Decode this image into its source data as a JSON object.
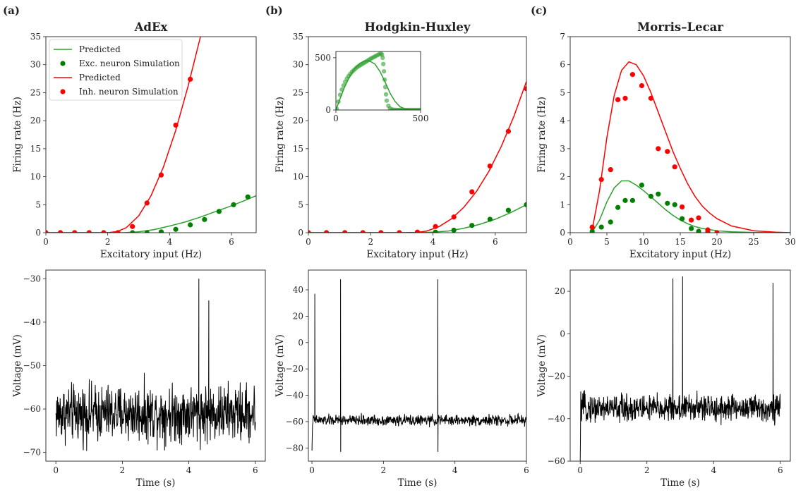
{
  "panel_labels": [
    "(a)",
    "(b)",
    "(c)"
  ],
  "chart_data": [
    {
      "id": "adex-fi",
      "type": "line",
      "title": "AdEx",
      "xlabel": "Excitatory input (Hz)",
      "ylabel": "Firing rate (Hz)",
      "xlim": [
        0,
        6.8
      ],
      "ylim": [
        0,
        35
      ],
      "xticks": [
        0,
        2,
        4,
        6
      ],
      "yticks": [
        0,
        5,
        10,
        15,
        20,
        25,
        30,
        35
      ],
      "legend": {
        "position": "top-left",
        "entries": [
          {
            "label": "Predicted",
            "kind": "line",
            "color": "#2ca02c"
          },
          {
            "label": "Exc. neuron Simulation",
            "kind": "marker",
            "color": "#008000"
          },
          {
            "label": "Predicted",
            "kind": "line",
            "color": "#ff0000"
          },
          {
            "label": "Inh. neuron Simulation",
            "kind": "marker",
            "color": "#ff0000"
          }
        ]
      },
      "series": [
        {
          "kind": "line",
          "color": "#2ca02c",
          "x": [
            0,
            1,
            2,
            2.5,
            3,
            3.5,
            4,
            4.5,
            5,
            5.5,
            6,
            6.5,
            6.8
          ],
          "y": [
            0,
            0,
            0,
            0,
            0.15,
            0.55,
            1.2,
            1.9,
            2.8,
            3.8,
            4.8,
            5.9,
            6.6
          ]
        },
        {
          "kind": "line",
          "color": "#ff0000",
          "x": [
            0,
            1,
            2,
            2.3,
            2.6,
            3,
            3.4,
            3.8,
            4.2,
            4.6,
            5,
            5.3
          ],
          "y": [
            0,
            0,
            0,
            0.2,
            0.9,
            3,
            6.6,
            11.7,
            18.3,
            26.2,
            35,
            42
          ]
        },
        {
          "kind": "scatter",
          "color": "#008000",
          "x": [
            0,
            0.47,
            0.93,
            1.4,
            1.87,
            2.33,
            2.8,
            3.27,
            3.73,
            4.2,
            4.67,
            5.13,
            5.6,
            6.07,
            6.53
          ],
          "y": [
            0,
            0,
            0,
            0,
            0,
            0,
            0,
            0,
            0.15,
            0.6,
            1.4,
            2.35,
            3.8,
            5,
            6.4
          ]
        },
        {
          "kind": "scatter",
          "color": "#ff0000",
          "x": [
            0,
            0.47,
            0.93,
            1.4,
            1.87,
            2.33,
            2.8,
            3.27,
            3.73,
            4.2,
            4.67
          ],
          "y": [
            0,
            0,
            0,
            0,
            0,
            0,
            1.1,
            5.3,
            10.3,
            19.2,
            27.4
          ]
        }
      ]
    },
    {
      "id": "hh-fi",
      "type": "line",
      "title": "Hodgkin-Huxley",
      "xlabel": "Excitatory input (Hz)",
      "ylabel": "Firing rate (Hz)",
      "xlim": [
        0,
        7
      ],
      "ylim": [
        0,
        35
      ],
      "xticks": [
        0,
        2,
        4,
        6
      ],
      "yticks": [
        0,
        5,
        10,
        15,
        20,
        25,
        30,
        35
      ],
      "series": [
        {
          "kind": "line",
          "color": "#2ca02c",
          "x": [
            0,
            3,
            3.5,
            4,
            4.5,
            5,
            5.5,
            6,
            6.5,
            7
          ],
          "y": [
            0,
            0,
            0,
            0.1,
            0.3,
            0.8,
            1.5,
            2.4,
            3.6,
            5
          ]
        },
        {
          "kind": "line",
          "color": "#ff0000",
          "x": [
            0,
            3,
            3.5,
            3.8,
            4.2,
            4.6,
            5,
            5.4,
            5.8,
            6.2,
            6.6,
            7
          ],
          "y": [
            0,
            0,
            0.05,
            0.3,
            1.1,
            2.5,
            4.6,
            7.4,
            11,
            15.5,
            20.8,
            27
          ]
        },
        {
          "kind": "scatter",
          "color": "#008000",
          "x": [
            0,
            0.58,
            1.17,
            1.75,
            2.33,
            2.92,
            3.5,
            4.08,
            4.67,
            5.25,
            5.83,
            6.42,
            7
          ],
          "y": [
            0,
            0,
            0,
            0,
            0,
            0,
            0,
            0.1,
            0.45,
            1.3,
            2.4,
            4,
            5
          ]
        },
        {
          "kind": "scatter",
          "color": "#ff0000",
          "x": [
            0,
            0.58,
            1.17,
            1.75,
            2.33,
            2.92,
            3.5,
            4.08,
            4.67,
            5.25,
            5.83,
            6.42,
            7
          ],
          "y": [
            0,
            0,
            0,
            0,
            0,
            0,
            0.1,
            1.1,
            2.8,
            7.3,
            11.9,
            18.1,
            25.7
          ]
        }
      ],
      "inset": {
        "xlim": [
          0,
          500
        ],
        "ylim": [
          0,
          560
        ],
        "xticks": [
          0,
          500
        ],
        "yticks": [
          0,
          500
        ],
        "series": [
          {
            "kind": "line",
            "color": "#2ca02c",
            "x": [
              0,
              25,
              50,
              80,
              110,
              140,
              170,
              200,
              230,
              260,
              290,
              320,
              350,
              380,
              410,
              440,
              500
            ],
            "y": [
              0,
              110,
              215,
              315,
              395,
              445,
              470,
              468,
              440,
              370,
              270,
              160,
              80,
              30,
              10,
              2,
              0
            ]
          },
          {
            "kind": "scatter",
            "color": "#2ca02c",
            "x": [
              5,
              15,
              25,
              35,
              45,
              55,
              65,
              75,
              85,
              95,
              105,
              115,
              125,
              135,
              145,
              155,
              165,
              175,
              185,
              195,
              205,
              215,
              225,
              235,
              245,
              255,
              265,
              272,
              276,
              280,
              284,
              288,
              292,
              296,
              300,
              310,
              320,
              330,
              340,
              350,
              360,
              370,
              380,
              390,
              400,
              410,
              420,
              430,
              440,
              450,
              460,
              470,
              480,
              490,
              500
            ],
            "y": [
              10,
              80,
              145,
              195,
              235,
              270,
              300,
              325,
              345,
              365,
              380,
              395,
              410,
              420,
              430,
              440,
              450,
              460,
              470,
              480,
              490,
              500,
              508,
              516,
              525,
              533,
              540,
              530,
              500,
              440,
              370,
              290,
              220,
              150,
              90,
              40,
              15,
              5,
              2,
              1,
              0,
              0,
              0,
              0,
              0,
              0,
              0,
              0,
              0,
              0,
              0,
              0,
              0,
              0,
              0
            ]
          }
        ]
      }
    },
    {
      "id": "ml-fi",
      "type": "line",
      "title": "Morris–Lecar",
      "xlabel": "Excitatory input (Hz)",
      "ylabel": "Firing rate (Hz)",
      "xlim": [
        0,
        30
      ],
      "ylim": [
        0,
        7
      ],
      "xticks": [
        0,
        5,
        10,
        15,
        20,
        25,
        30
      ],
      "yticks": [
        0,
        1,
        2,
        3,
        4,
        5,
        6,
        7
      ],
      "series": [
        {
          "kind": "line",
          "color": "#2ca02c",
          "x": [
            3,
            4,
            5,
            6,
            7,
            8,
            9,
            10,
            11,
            12,
            13,
            14,
            15,
            16,
            17,
            18,
            20,
            22,
            25,
            30
          ],
          "y": [
            0.02,
            0.45,
            1.1,
            1.6,
            1.85,
            1.85,
            1.7,
            1.5,
            1.28,
            1.05,
            0.82,
            0.62,
            0.45,
            0.32,
            0.22,
            0.15,
            0.07,
            0.03,
            0.01,
            0
          ]
        },
        {
          "kind": "line",
          "color": "#ff0000",
          "x": [
            3,
            4,
            5,
            6,
            7,
            8,
            9,
            10,
            11,
            12,
            13,
            14,
            15,
            16,
            17,
            18,
            19,
            20,
            22,
            25,
            28,
            30
          ],
          "y": [
            0.1,
            1.5,
            3.4,
            4.9,
            5.8,
            6.1,
            6,
            5.6,
            5,
            4.3,
            3.6,
            2.9,
            2.3,
            1.75,
            1.3,
            0.95,
            0.7,
            0.5,
            0.24,
            0.07,
            0.02,
            0
          ]
        },
        {
          "kind": "scatter",
          "color": "#008000",
          "x": [
            3,
            4.25,
            5.5,
            6.5,
            7.5,
            8.5,
            9.75,
            11,
            12,
            13.25,
            14.25,
            15.25,
            16.5,
            17.5,
            18.75,
            20
          ],
          "y": [
            0.05,
            0.2,
            0.38,
            0.9,
            1.15,
            1.15,
            1.7,
            1.3,
            1.38,
            1.05,
            1,
            0.5,
            0.15,
            0.05,
            0.02,
            0
          ]
        },
        {
          "kind": "scatter",
          "color": "#ff0000",
          "x": [
            3,
            4.25,
            5.5,
            6.5,
            7.5,
            8.5,
            9.75,
            11,
            12,
            13.25,
            14.25,
            15.25,
            16.5,
            17.5,
            18.75,
            20
          ],
          "y": [
            0.2,
            1.9,
            2.25,
            4.75,
            4.8,
            5.65,
            5.25,
            4.8,
            3,
            2.9,
            2.35,
            0.92,
            0.45,
            0.53,
            0.1,
            0
          ]
        }
      ]
    },
    {
      "id": "adex-trace",
      "type": "line",
      "xlabel": "Time (s)",
      "ylabel": "Voltage (mV)",
      "xlim": [
        -0.3,
        6.3
      ],
      "ylim": [
        -72,
        -28
      ],
      "xticks": [
        0,
        2,
        4,
        6
      ],
      "yticks": [
        -70,
        -60,
        -50,
        -40,
        -30
      ],
      "trace": {
        "t0": 0,
        "t1": 6,
        "base": -61,
        "noise": 4,
        "start": -61,
        "clip": [
          -70,
          -50
        ],
        "spikes": [
          {
            "t": 4.3,
            "peak": -30
          },
          {
            "t": 4.6,
            "peak": -35
          }
        ]
      }
    },
    {
      "id": "hh-trace",
      "type": "line",
      "xlabel": "Time (s)",
      "ylabel": "Voltage (mV)",
      "xlim": [
        -0.1,
        6
      ],
      "ylim": [
        -90,
        55
      ],
      "xticks": [
        0,
        2,
        4,
        6
      ],
      "yticks": [
        -80,
        -60,
        -40,
        -20,
        0,
        20,
        40
      ],
      "trace": {
        "t0": 0,
        "t1": 6,
        "base": -59,
        "noise": 2.5,
        "start": -82,
        "clip": [
          -67,
          -48
        ],
        "spikes": [
          {
            "t": 0.08,
            "peak": 37
          },
          {
            "t": 0.8,
            "peak": 48,
            "trough": -83
          },
          {
            "t": 3.52,
            "peak": 48,
            "trough": -83
          }
        ]
      }
    },
    {
      "id": "ml-trace",
      "type": "line",
      "xlabel": "Time (s)",
      "ylabel": "Voltage (mV)",
      "xlim": [
        -0.3,
        6.3
      ],
      "ylim": [
        -60,
        30
      ],
      "xticks": [
        0,
        2,
        4,
        6
      ],
      "yticks": [
        -60,
        -40,
        -20,
        0,
        20
      ],
      "trace": {
        "t0": 0,
        "t1": 6,
        "base": -35,
        "noise": 4,
        "start": -60,
        "clip": [
          -45,
          -18
        ],
        "spikes": [
          {
            "t": 2.78,
            "peak": 26
          },
          {
            "t": 3.07,
            "peak": 27
          },
          {
            "t": 5.78,
            "peak": 24
          }
        ]
      }
    }
  ]
}
